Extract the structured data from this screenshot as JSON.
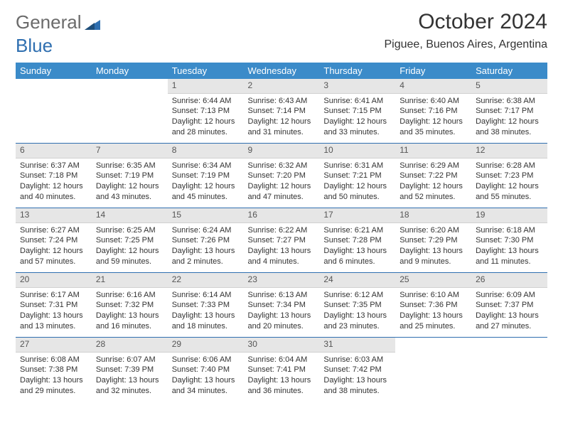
{
  "colors": {
    "header_bg": "#3b8bc9",
    "daynum_bg": "#e6e6e6",
    "rule": "#2f6fb0",
    "text": "#333333",
    "logo_gray": "#6b6b6b",
    "logo_blue": "#2f6fb0"
  },
  "logo": {
    "part1": "General",
    "part2": "Blue"
  },
  "title": "October 2024",
  "location": "Piguee, Buenos Aires, Argentina",
  "day_headers": [
    "Sunday",
    "Monday",
    "Tuesday",
    "Wednesday",
    "Thursday",
    "Friday",
    "Saturday"
  ],
  "weeks": [
    {
      "nums": [
        "",
        "",
        "1",
        "2",
        "3",
        "4",
        "5"
      ],
      "cells": [
        null,
        null,
        {
          "sunrise": "Sunrise: 6:44 AM",
          "sunset": "Sunset: 7:13 PM",
          "d1": "Daylight: 12 hours",
          "d2": "and 28 minutes."
        },
        {
          "sunrise": "Sunrise: 6:43 AM",
          "sunset": "Sunset: 7:14 PM",
          "d1": "Daylight: 12 hours",
          "d2": "and 31 minutes."
        },
        {
          "sunrise": "Sunrise: 6:41 AM",
          "sunset": "Sunset: 7:15 PM",
          "d1": "Daylight: 12 hours",
          "d2": "and 33 minutes."
        },
        {
          "sunrise": "Sunrise: 6:40 AM",
          "sunset": "Sunset: 7:16 PM",
          "d1": "Daylight: 12 hours",
          "d2": "and 35 minutes."
        },
        {
          "sunrise": "Sunrise: 6:38 AM",
          "sunset": "Sunset: 7:17 PM",
          "d1": "Daylight: 12 hours",
          "d2": "and 38 minutes."
        }
      ]
    },
    {
      "nums": [
        "6",
        "7",
        "8",
        "9",
        "10",
        "11",
        "12"
      ],
      "cells": [
        {
          "sunrise": "Sunrise: 6:37 AM",
          "sunset": "Sunset: 7:18 PM",
          "d1": "Daylight: 12 hours",
          "d2": "and 40 minutes."
        },
        {
          "sunrise": "Sunrise: 6:35 AM",
          "sunset": "Sunset: 7:19 PM",
          "d1": "Daylight: 12 hours",
          "d2": "and 43 minutes."
        },
        {
          "sunrise": "Sunrise: 6:34 AM",
          "sunset": "Sunset: 7:19 PM",
          "d1": "Daylight: 12 hours",
          "d2": "and 45 minutes."
        },
        {
          "sunrise": "Sunrise: 6:32 AM",
          "sunset": "Sunset: 7:20 PM",
          "d1": "Daylight: 12 hours",
          "d2": "and 47 minutes."
        },
        {
          "sunrise": "Sunrise: 6:31 AM",
          "sunset": "Sunset: 7:21 PM",
          "d1": "Daylight: 12 hours",
          "d2": "and 50 minutes."
        },
        {
          "sunrise": "Sunrise: 6:29 AM",
          "sunset": "Sunset: 7:22 PM",
          "d1": "Daylight: 12 hours",
          "d2": "and 52 minutes."
        },
        {
          "sunrise": "Sunrise: 6:28 AM",
          "sunset": "Sunset: 7:23 PM",
          "d1": "Daylight: 12 hours",
          "d2": "and 55 minutes."
        }
      ]
    },
    {
      "nums": [
        "13",
        "14",
        "15",
        "16",
        "17",
        "18",
        "19"
      ],
      "cells": [
        {
          "sunrise": "Sunrise: 6:27 AM",
          "sunset": "Sunset: 7:24 PM",
          "d1": "Daylight: 12 hours",
          "d2": "and 57 minutes."
        },
        {
          "sunrise": "Sunrise: 6:25 AM",
          "sunset": "Sunset: 7:25 PM",
          "d1": "Daylight: 12 hours",
          "d2": "and 59 minutes."
        },
        {
          "sunrise": "Sunrise: 6:24 AM",
          "sunset": "Sunset: 7:26 PM",
          "d1": "Daylight: 13 hours",
          "d2": "and 2 minutes."
        },
        {
          "sunrise": "Sunrise: 6:22 AM",
          "sunset": "Sunset: 7:27 PM",
          "d1": "Daylight: 13 hours",
          "d2": "and 4 minutes."
        },
        {
          "sunrise": "Sunrise: 6:21 AM",
          "sunset": "Sunset: 7:28 PM",
          "d1": "Daylight: 13 hours",
          "d2": "and 6 minutes."
        },
        {
          "sunrise": "Sunrise: 6:20 AM",
          "sunset": "Sunset: 7:29 PM",
          "d1": "Daylight: 13 hours",
          "d2": "and 9 minutes."
        },
        {
          "sunrise": "Sunrise: 6:18 AM",
          "sunset": "Sunset: 7:30 PM",
          "d1": "Daylight: 13 hours",
          "d2": "and 11 minutes."
        }
      ]
    },
    {
      "nums": [
        "20",
        "21",
        "22",
        "23",
        "24",
        "25",
        "26"
      ],
      "cells": [
        {
          "sunrise": "Sunrise: 6:17 AM",
          "sunset": "Sunset: 7:31 PM",
          "d1": "Daylight: 13 hours",
          "d2": "and 13 minutes."
        },
        {
          "sunrise": "Sunrise: 6:16 AM",
          "sunset": "Sunset: 7:32 PM",
          "d1": "Daylight: 13 hours",
          "d2": "and 16 minutes."
        },
        {
          "sunrise": "Sunrise: 6:14 AM",
          "sunset": "Sunset: 7:33 PM",
          "d1": "Daylight: 13 hours",
          "d2": "and 18 minutes."
        },
        {
          "sunrise": "Sunrise: 6:13 AM",
          "sunset": "Sunset: 7:34 PM",
          "d1": "Daylight: 13 hours",
          "d2": "and 20 minutes."
        },
        {
          "sunrise": "Sunrise: 6:12 AM",
          "sunset": "Sunset: 7:35 PM",
          "d1": "Daylight: 13 hours",
          "d2": "and 23 minutes."
        },
        {
          "sunrise": "Sunrise: 6:10 AM",
          "sunset": "Sunset: 7:36 PM",
          "d1": "Daylight: 13 hours",
          "d2": "and 25 minutes."
        },
        {
          "sunrise": "Sunrise: 6:09 AM",
          "sunset": "Sunset: 7:37 PM",
          "d1": "Daylight: 13 hours",
          "d2": "and 27 minutes."
        }
      ]
    },
    {
      "nums": [
        "27",
        "28",
        "29",
        "30",
        "31",
        "",
        ""
      ],
      "cells": [
        {
          "sunrise": "Sunrise: 6:08 AM",
          "sunset": "Sunset: 7:38 PM",
          "d1": "Daylight: 13 hours",
          "d2": "and 29 minutes."
        },
        {
          "sunrise": "Sunrise: 6:07 AM",
          "sunset": "Sunset: 7:39 PM",
          "d1": "Daylight: 13 hours",
          "d2": "and 32 minutes."
        },
        {
          "sunrise": "Sunrise: 6:06 AM",
          "sunset": "Sunset: 7:40 PM",
          "d1": "Daylight: 13 hours",
          "d2": "and 34 minutes."
        },
        {
          "sunrise": "Sunrise: 6:04 AM",
          "sunset": "Sunset: 7:41 PM",
          "d1": "Daylight: 13 hours",
          "d2": "and 36 minutes."
        },
        {
          "sunrise": "Sunrise: 6:03 AM",
          "sunset": "Sunset: 7:42 PM",
          "d1": "Daylight: 13 hours",
          "d2": "and 38 minutes."
        },
        null,
        null
      ]
    }
  ]
}
